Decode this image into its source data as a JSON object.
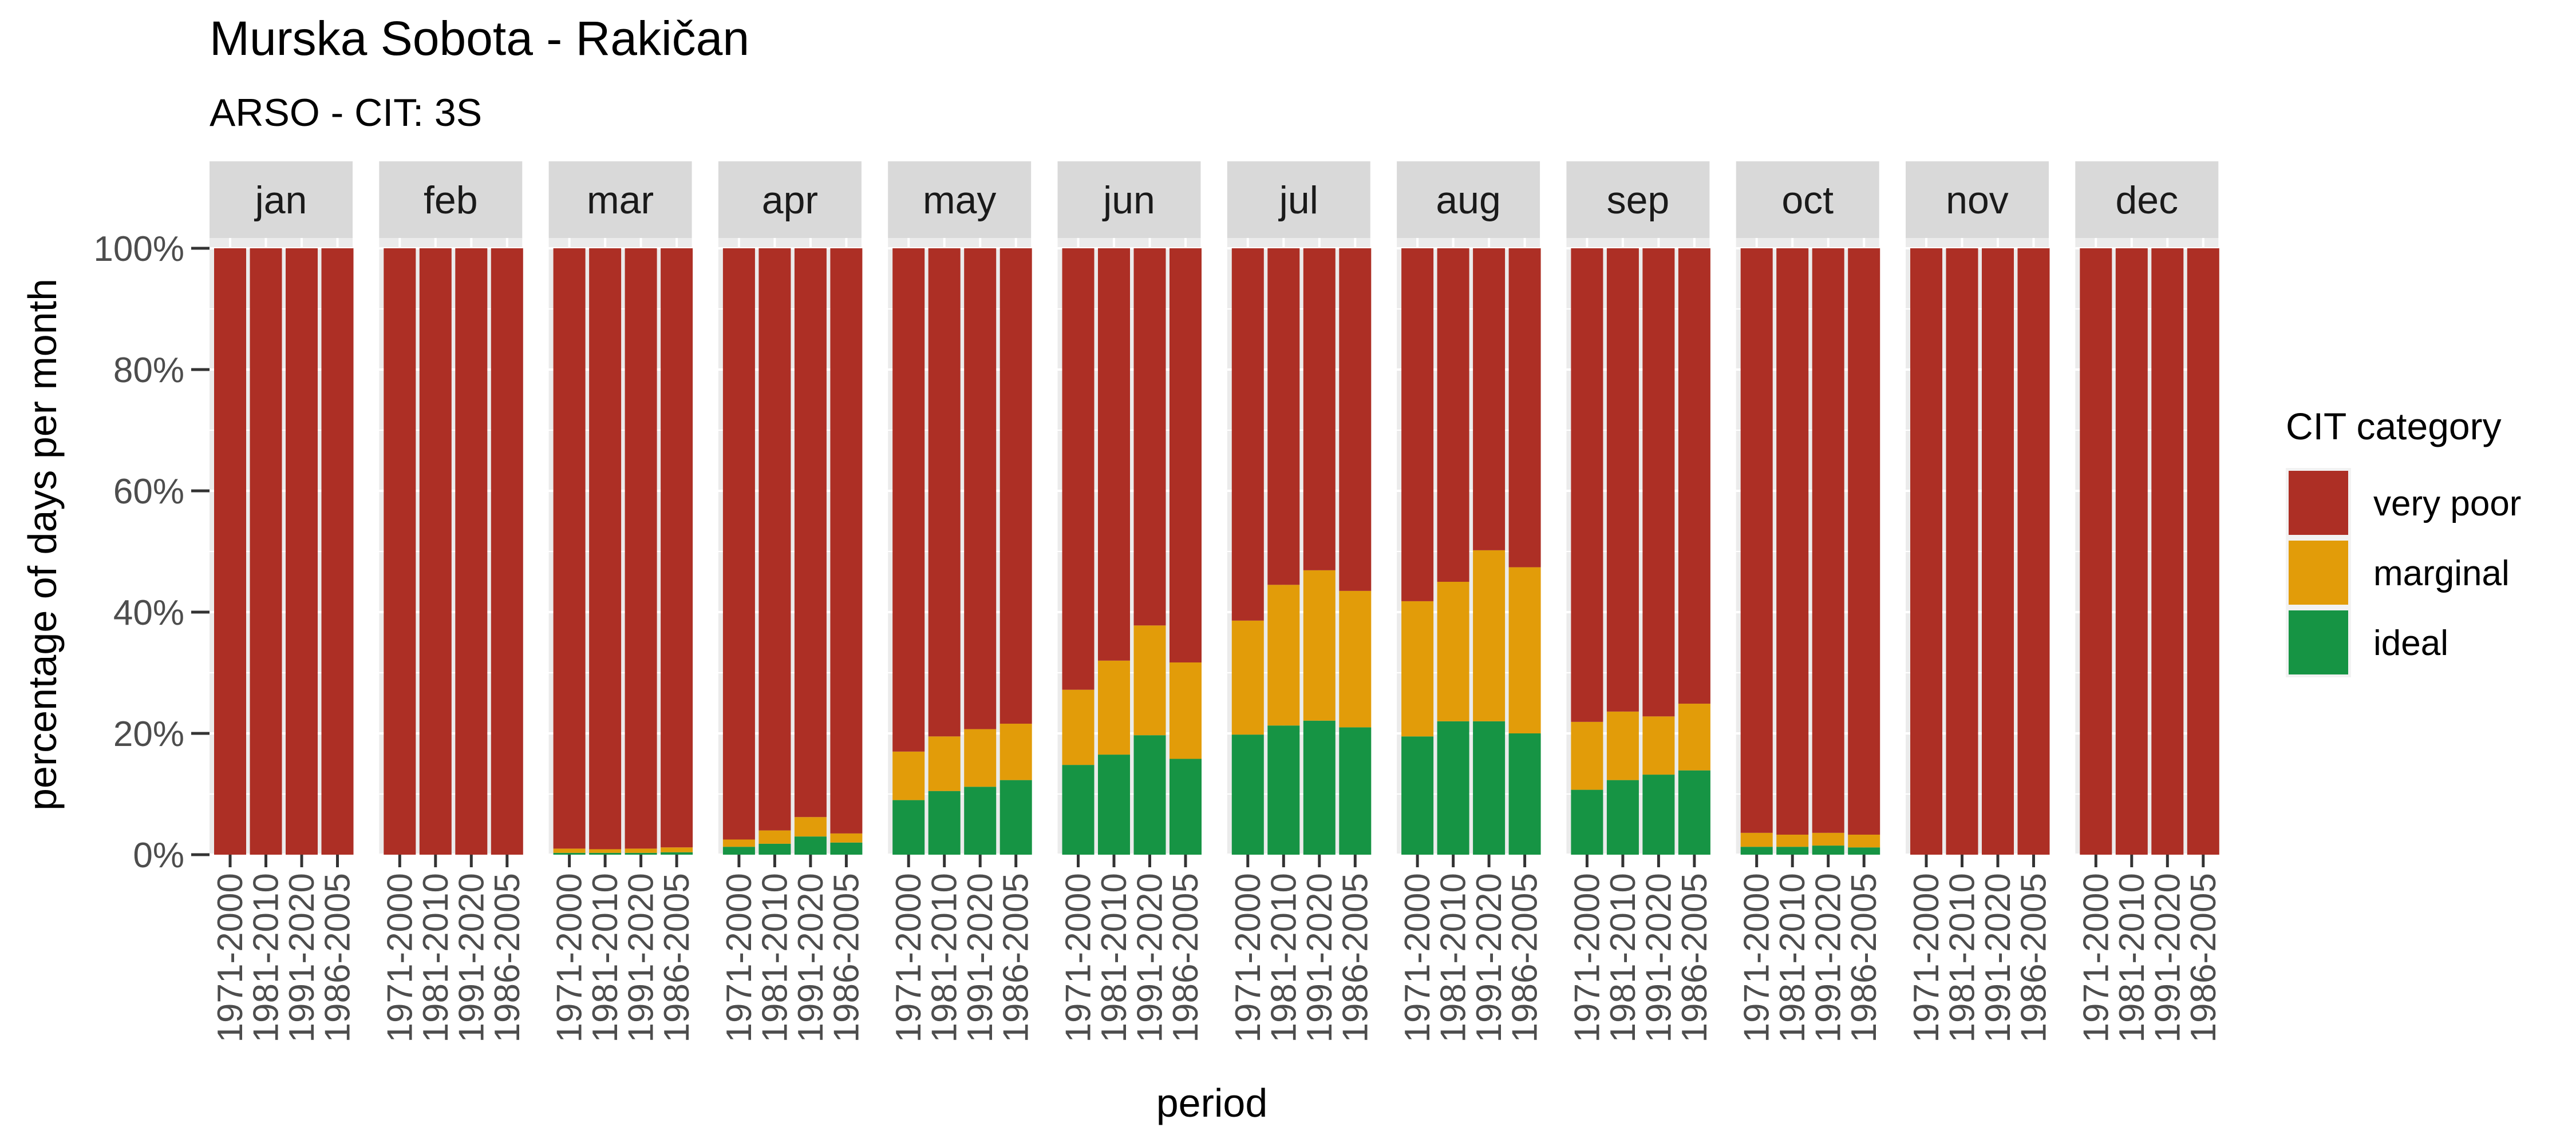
{
  "chart_data": {
    "type": "bar",
    "stacked": true,
    "faceted": true,
    "title": "Murska Sobota - Rakičan",
    "subtitle": "ARSO - CIT: 3S",
    "xlabel": "period",
    "ylabel": "percentage of days per month",
    "ylim": [
      0,
      100
    ],
    "y_ticks": [
      "0%",
      "20%",
      "40%",
      "60%",
      "80%",
      "100%"
    ],
    "y_tick_values": [
      0,
      20,
      40,
      60,
      80,
      100
    ],
    "grid": true,
    "legend": {
      "title": "CIT category",
      "position": "right",
      "items": [
        {
          "name": "very poor",
          "color": "#AD2F25"
        },
        {
          "name": "marginal",
          "color": "#E29C09"
        },
        {
          "name": "ideal",
          "color": "#169444"
        }
      ]
    },
    "categories": [
      "1971-2000",
      "1981-2010",
      "1991-2020",
      "1986-2005"
    ],
    "facets": [
      {
        "label": "jan",
        "ideal": [
          0,
          0,
          0,
          0
        ],
        "marginal": [
          0,
          0,
          0,
          0
        ],
        "very_poor": [
          100,
          100,
          100,
          100
        ]
      },
      {
        "label": "feb",
        "ideal": [
          0,
          0,
          0,
          0
        ],
        "marginal": [
          0,
          0,
          0,
          0
        ],
        "very_poor": [
          100,
          100,
          100,
          100
        ]
      },
      {
        "label": "mar",
        "ideal": [
          0.3,
          0.3,
          0.3,
          0.4
        ],
        "marginal": [
          0.7,
          0.6,
          0.7,
          0.8
        ],
        "very_poor": [
          99.0,
          99.1,
          99.0,
          98.8
        ]
      },
      {
        "label": "apr",
        "ideal": [
          1.3,
          1.8,
          3.0,
          2.0
        ],
        "marginal": [
          1.2,
          2.2,
          3.2,
          1.5
        ],
        "very_poor": [
          97.5,
          96.0,
          93.8,
          96.5
        ]
      },
      {
        "label": "may",
        "ideal": [
          9.0,
          10.5,
          11.2,
          12.3
        ],
        "marginal": [
          8.0,
          9.0,
          9.5,
          9.3
        ],
        "very_poor": [
          83.0,
          80.5,
          79.3,
          78.4
        ]
      },
      {
        "label": "jun",
        "ideal": [
          14.8,
          16.5,
          19.7,
          15.8
        ],
        "marginal": [
          12.4,
          15.5,
          18.1,
          15.9
        ],
        "very_poor": [
          72.8,
          68.0,
          62.2,
          68.3
        ]
      },
      {
        "label": "jul",
        "ideal": [
          19.8,
          21.3,
          22.1,
          21.0
        ],
        "marginal": [
          18.8,
          23.2,
          24.8,
          22.5
        ],
        "very_poor": [
          61.4,
          55.5,
          53.1,
          56.5
        ]
      },
      {
        "label": "aug",
        "ideal": [
          19.5,
          22.0,
          22.0,
          20.0
        ],
        "marginal": [
          22.3,
          23.0,
          28.2,
          27.4
        ],
        "very_poor": [
          58.2,
          55.0,
          49.8,
          52.6
        ]
      },
      {
        "label": "sep",
        "ideal": [
          10.7,
          12.3,
          13.2,
          13.9
        ],
        "marginal": [
          11.2,
          11.3,
          9.6,
          11.0
        ],
        "very_poor": [
          78.1,
          76.4,
          77.2,
          75.1
        ]
      },
      {
        "label": "oct",
        "ideal": [
          1.3,
          1.3,
          1.5,
          1.2
        ],
        "marginal": [
          2.3,
          2.0,
          2.1,
          2.1
        ],
        "very_poor": [
          96.4,
          96.7,
          96.4,
          96.7
        ]
      },
      {
        "label": "nov",
        "ideal": [
          0,
          0,
          0,
          0
        ],
        "marginal": [
          0,
          0,
          0,
          0
        ],
        "very_poor": [
          100,
          100,
          100,
          100
        ]
      },
      {
        "label": "dec",
        "ideal": [
          0,
          0,
          0,
          0
        ],
        "marginal": [
          0,
          0,
          0,
          0
        ],
        "very_poor": [
          100,
          100,
          100,
          100
        ]
      }
    ]
  }
}
